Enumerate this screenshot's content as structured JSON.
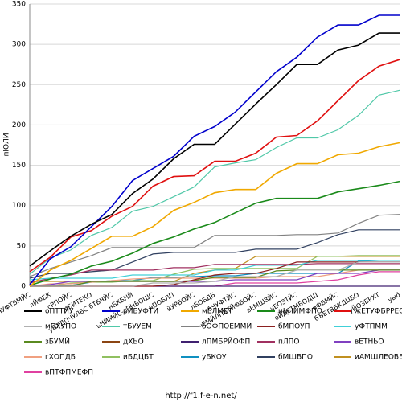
{
  "chart_data": {
    "type": "line",
    "ylabel": "пЮЛЙ",
    "footer": "http://f1.f-e-n.net/",
    "categories": [
      "бЧУФТБМЙС",
      "лЙФБК",
      "сРПОЙС",
      "вБИТЕКО",
      "уБХДПЧУЛБС бТБЧЙС",
      "нБКБНЙ",
      "ьНЙМЙС-тПНБОШС",
      "нПОБЛП",
      "йУРБОЙС",
      "лБОБДБ",
      "бЧУФТЙС",
      "чЕМЙЛПВТЙФБОЙС",
      "вЕМШЗЙС",
      "чЕОЗТЙС",
      "оЙДЕТМБОДЩ",
      "йФБМЙС",
      "бЪЕТВБКДЦБО",
      "уЙОЗБРХТ",
      "уыб"
    ],
    "ylim": [
      0,
      350
    ],
    "yticks": [
      0,
      50,
      100,
      150,
      200,
      250,
      300,
      350
    ],
    "grid": true,
    "series": [
      {
        "name": "оПТТЙУ",
        "color": "#000000",
        "values": [
          25,
          44,
          62,
          77,
          89,
          115,
          133,
          158,
          176,
          176,
          201,
          226,
          250,
          275,
          275,
          293,
          299,
          314,
          314
        ]
      },
      {
        "name": "рЙБУФТЙ",
        "color": "#0000cc",
        "values": [
          2,
          34,
          49,
          74,
          99,
          131,
          146,
          161,
          186,
          198,
          216,
          241,
          266,
          284,
          309,
          324,
          324,
          336,
          336
        ]
      },
      {
        "name": "мЕЛМЕТ",
        "color": "#f0a800",
        "values": [
          0,
          20,
          32,
          47,
          62,
          62,
          74,
          94,
          104,
          116,
          120,
          120,
          140,
          152,
          152,
          163,
          165,
          173,
          178
        ]
      },
      {
        "name": "иЬНЙМФПО",
        "color": "#1a8a1a",
        "values": [
          1,
          9,
          15,
          25,
          31,
          41,
          53,
          61,
          71,
          79,
          91,
          103,
          109,
          109,
          109,
          117,
          121,
          125,
          130
        ]
      },
      {
        "name": "жЕТУФБРРЕО",
        "color": "#e01010",
        "values": [
          18,
          36,
          61,
          69,
          87,
          99,
          124,
          136,
          137,
          155,
          155,
          165,
          185,
          187,
          205,
          230,
          255,
          273,
          281
        ]
      },
      {
        "name": "мПХУПО",
        "color": "#b0b0b0",
        "values": [
          0,
          0,
          0,
          0,
          0,
          0,
          4,
          4,
          4,
          6,
          12,
          12,
          12,
          20,
          20,
          20,
          30,
          30,
          30
        ]
      },
      {
        "name": "тБУУЕМ",
        "color": "#50c8a8",
        "values": [
          15,
          35,
          45,
          63,
          73,
          93,
          99,
          111,
          123,
          148,
          153,
          157,
          172,
          184,
          184,
          194,
          212,
          237,
          243
        ]
      },
      {
        "name": "бОФПОЕММЙ",
        "color": "#808080",
        "values": [
          12,
          22,
          30,
          38,
          48,
          48,
          48,
          48,
          48,
          63,
          63,
          63,
          63,
          64,
          64,
          66,
          78,
          88,
          89
        ]
      },
      {
        "name": "бМПОУП",
        "color": "#8b2020",
        "values": [
          0,
          0,
          0,
          0,
          0,
          0,
          0,
          2,
          8,
          14,
          16,
          16,
          22,
          30,
          30,
          30,
          30,
          30,
          30
        ]
      },
      {
        "name": "уФТПММ",
        "color": "#40d0d8",
        "values": [
          8,
          10,
          10,
          10,
          10,
          14,
          14,
          14,
          14,
          20,
          20,
          26,
          26,
          26,
          32,
          32,
          32,
          32,
          32
        ]
      },
      {
        "name": "зБУМЙ",
        "color": "#5a8a20",
        "values": [
          0,
          0,
          0,
          6,
          6,
          6,
          6,
          6,
          7,
          11,
          11,
          11,
          19,
          20,
          20,
          20,
          20,
          20,
          20
        ]
      },
      {
        "name": "дХЬО",
        "color": "#8b4513",
        "values": [
          0,
          0,
          0,
          0,
          0,
          0,
          null,
          null,
          null,
          null,
          null,
          null,
          null,
          null,
          null,
          null,
          null,
          null,
          null
        ]
      },
      {
        "name": "лПМБРЙОФП",
        "color": "#402070",
        "values": [
          null,
          null,
          null,
          null,
          null,
          null,
          0,
          0,
          0,
          0,
          0,
          0,
          0,
          0,
          0,
          0,
          0,
          0,
          0
        ]
      },
      {
        "name": "пЛПО",
        "color": "#a03060",
        "values": [
          4,
          10,
          14,
          20,
          20,
          20,
          20,
          23,
          23,
          27,
          27,
          27,
          27,
          27,
          28,
          28,
          28,
          28,
          28
        ]
      },
      {
        "name": "вЕТНЬО",
        "color": "#8040c0",
        "values": [
          0,
          2,
          6,
          6,
          6,
          6,
          6,
          6,
          6,
          6,
          8,
          8,
          8,
          8,
          16,
          16,
          16,
          20,
          20
        ]
      },
      {
        "name": "гХОПДБ",
        "color": "#f0a080",
        "values": [
          0,
          3,
          3,
          5,
          7,
          9,
          10,
          10,
          10,
          10,
          10,
          10,
          12,
          12,
          12,
          16,
          20,
          20,
          20
        ]
      },
      {
        "name": "иБДЦБТ",
        "color": "#90c060",
        "values": [
          0,
          0,
          4,
          5,
          5,
          7,
          7,
          15,
          21,
          22,
          22,
          22,
          22,
          22,
          37,
          37,
          38,
          38,
          38
        ]
      },
      {
        "name": "уБКОУ",
        "color": "#1090c0",
        "values": [
          0,
          1,
          1,
          5,
          7,
          7,
          11,
          11,
          12,
          13,
          13,
          16,
          16,
          16,
          16,
          16,
          31,
          32,
          32
        ]
      },
      {
        "name": "бМШВПО",
        "color": "#304060",
        "values": [
          10,
          16,
          16,
          18,
          20,
          30,
          40,
          42,
          42,
          42,
          42,
          46,
          46,
          46,
          54,
          64,
          70,
          70,
          70
        ]
      },
      {
        "name": "иАМШЛЕОВЕТЗ",
        "color": "#c09020",
        "values": [
          6,
          6,
          6,
          6,
          6,
          6,
          6,
          6,
          16,
          20,
          22,
          37,
          37,
          37,
          37,
          37,
          37,
          37,
          37
        ]
      },
      {
        "name": "вПТФПМЕФП",
        "color": "#e040a0",
        "values": [
          0,
          0,
          0,
          0,
          0,
          0,
          0,
          0,
          0,
          0,
          4,
          4,
          4,
          4,
          6,
          8,
          14,
          18,
          18
        ]
      }
    ]
  }
}
